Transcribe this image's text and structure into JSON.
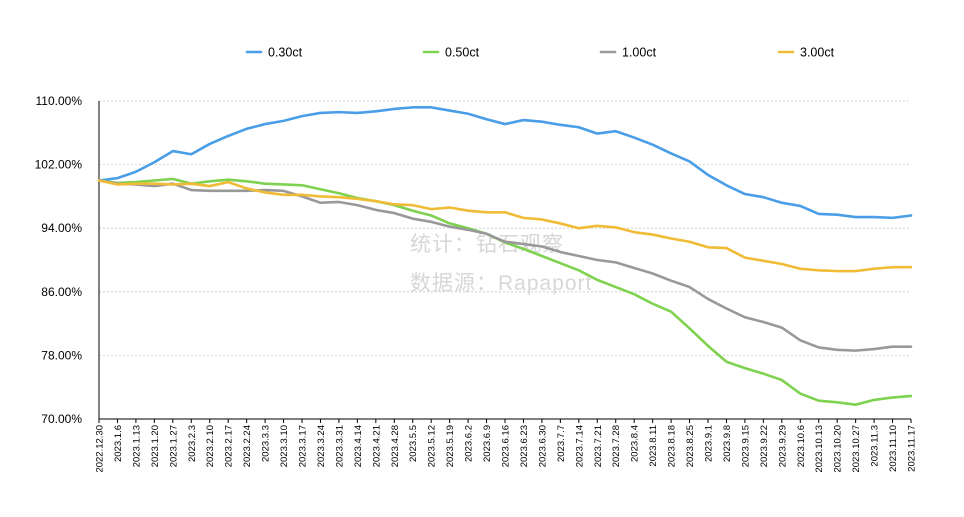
{
  "chart_data": {
    "type": "line",
    "title": "",
    "xlabel": "",
    "ylabel": "",
    "ylim": [
      70,
      110
    ],
    "yticks": [
      "70.00%",
      "78.00%",
      "86.00%",
      "94.00%",
      "102.00%",
      "110.00%"
    ],
    "ytick_values": [
      70,
      78,
      86,
      94,
      102,
      110
    ],
    "grid": "horizontal",
    "legend_position": "top",
    "x": [
      "2022.12.30",
      "2023.1.6",
      "2023.1.13",
      "2023.1.20",
      "2023.1.27",
      "2023.2.3",
      "2023.2.10",
      "2023.2.17",
      "2023.2.24",
      "2023.3.3",
      "2023.3.10",
      "2023.3.17",
      "2023.3.24",
      "2023.3.31",
      "2023.4.14",
      "2023.4.21",
      "2023.4.28",
      "2023.5.5",
      "2023.5.12",
      "2023.5.19",
      "2023.6.2",
      "2023.6.9",
      "2023.6.16",
      "2023.6.23",
      "2023.6.30",
      "2023.7.7",
      "2023.7.14",
      "2023.7.21",
      "2023.7.28",
      "2023.8.4",
      "2023.8.11",
      "2023.8.18",
      "2023.8.25",
      "2023.9.1",
      "2023.9.8",
      "2023.9.15",
      "2023.9.22",
      "2023.9.29",
      "2023.10.6",
      "2023.10.13",
      "2023.10.20",
      "2023.10.27",
      "2023.11.3",
      "2023.11.10",
      "2023.11.17"
    ],
    "series": [
      {
        "name": "0.30ct",
        "color": "#4a9ee8",
        "values": [
          100.0,
          100.3,
          101.1,
          102.3,
          103.7,
          103.3,
          104.6,
          105.6,
          106.5,
          107.1,
          107.5,
          108.1,
          108.5,
          108.6,
          108.5,
          108.7,
          109.0,
          109.2,
          109.2,
          108.8,
          108.4,
          107.7,
          107.1,
          107.6,
          107.4,
          107.0,
          106.7,
          105.9,
          106.2,
          105.4,
          104.5,
          103.4,
          102.4,
          100.7,
          99.4,
          98.3,
          97.9,
          97.2,
          96.8,
          95.8,
          95.7,
          95.4,
          95.4,
          95.3,
          95.6
        ]
      },
      {
        "name": "0.50ct",
        "color": "#7ed24f",
        "values": [
          100.0,
          99.7,
          99.8,
          100.0,
          100.2,
          99.6,
          99.9,
          100.1,
          99.9,
          99.6,
          99.5,
          99.4,
          98.9,
          98.4,
          97.8,
          97.4,
          96.9,
          96.2,
          95.6,
          94.6,
          94.0,
          93.3,
          92.2,
          91.4,
          90.5,
          89.6,
          88.7,
          87.5,
          86.6,
          85.7,
          84.5,
          83.5,
          81.4,
          79.2,
          77.2,
          76.4,
          75.7,
          74.9,
          73.2,
          72.3,
          72.1,
          71.8,
          72.4,
          72.7,
          72.9
        ]
      },
      {
        "name": "1.00ct",
        "color": "#999999",
        "values": [
          100.0,
          99.6,
          99.5,
          99.3,
          99.6,
          98.8,
          98.7,
          98.7,
          98.7,
          98.8,
          98.7,
          98.0,
          97.2,
          97.3,
          96.9,
          96.3,
          95.9,
          95.2,
          94.8,
          94.2,
          93.8,
          93.3,
          92.3,
          92.0,
          91.7,
          91.0,
          90.5,
          90.0,
          89.7,
          89.0,
          88.3,
          87.4,
          86.6,
          85.1,
          83.9,
          82.8,
          82.2,
          81.5,
          79.9,
          79.0,
          78.7,
          78.6,
          78.8,
          79.1,
          79.1
        ]
      },
      {
        "name": "3.00ct",
        "color": "#f0bb35",
        "values": [
          100.0,
          99.5,
          99.6,
          99.6,
          99.5,
          99.6,
          99.3,
          99.8,
          99.0,
          98.5,
          98.2,
          98.2,
          98.0,
          97.9,
          97.7,
          97.4,
          97.0,
          96.9,
          96.4,
          96.6,
          96.2,
          96.0,
          96.0,
          95.3,
          95.1,
          94.6,
          94.0,
          94.3,
          94.1,
          93.5,
          93.2,
          92.7,
          92.3,
          91.6,
          91.5,
          90.3,
          89.9,
          89.5,
          88.9,
          88.7,
          88.6,
          88.6,
          88.9,
          89.1,
          89.1
        ]
      }
    ]
  },
  "watermark": {
    "line1": "统计：钻石观察",
    "line2": "数据源：Rapaport"
  }
}
